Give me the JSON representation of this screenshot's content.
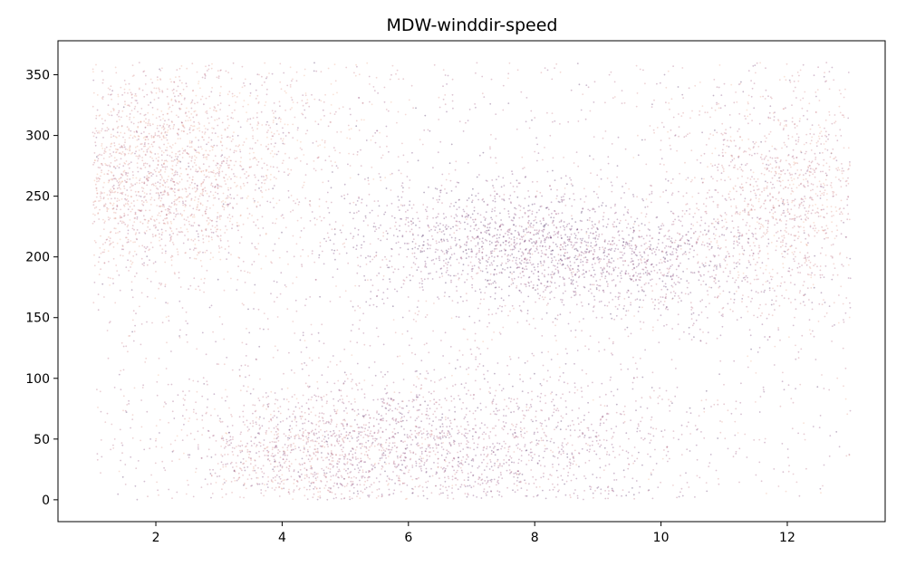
{
  "chart_data": {
    "type": "scatter",
    "title": "MDW-winddir-speed",
    "xlabel": "",
    "ylabel": "",
    "xlim": [
      0.45,
      13.55
    ],
    "ylim": [
      -18,
      378
    ],
    "x_ticks": [
      2,
      4,
      6,
      8,
      10,
      12
    ],
    "y_ticks": [
      0,
      50,
      100,
      150,
      200,
      250,
      300,
      350
    ],
    "x_range": [
      1,
      13
    ],
    "y_range": [
      0,
      360
    ],
    "colormap": [
      "#f2b28c",
      "#d98a87",
      "#b0607f",
      "#7a3f7a",
      "#3a1a52"
    ],
    "point_alpha": 0.35,
    "clusters": [
      {
        "x": 1.8,
        "y": 265,
        "sx": 0.9,
        "sy": 40,
        "w": 0.14,
        "color_level": 0.3
      },
      {
        "x": 3.0,
        "y": 290,
        "sx": 1.2,
        "sy": 50,
        "w": 0.08,
        "color_level": 0.25
      },
      {
        "x": 7.5,
        "y": 215,
        "sx": 1.4,
        "sy": 25,
        "w": 0.12,
        "color_level": 0.75
      },
      {
        "x": 9.3,
        "y": 195,
        "sx": 1.2,
        "sy": 22,
        "w": 0.09,
        "color_level": 0.7
      },
      {
        "x": 12.0,
        "y": 250,
        "sx": 0.9,
        "sy": 45,
        "w": 0.12,
        "color_level": 0.35
      },
      {
        "x": 5.6,
        "y": 45,
        "sx": 1.4,
        "sy": 30,
        "w": 0.12,
        "color_level": 0.6
      },
      {
        "x": 4.2,
        "y": 35,
        "sx": 1.0,
        "sy": 28,
        "w": 0.06,
        "color_level": 0.35
      },
      {
        "x": 8.0,
        "y": 40,
        "sx": 1.3,
        "sy": 35,
        "w": 0.07,
        "color_level": 0.65
      }
    ],
    "background_weight": 0.2,
    "point_count": 9000
  }
}
